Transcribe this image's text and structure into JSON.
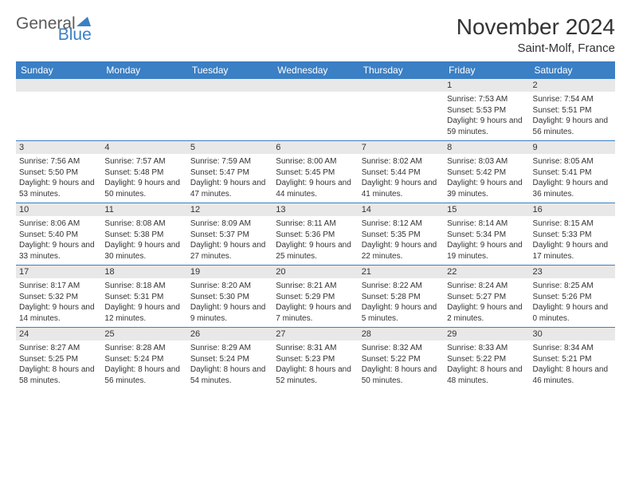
{
  "logo": {
    "textA": "General",
    "textB": "Blue"
  },
  "title": "November 2024",
  "location": "Saint-Molf, France",
  "colors": {
    "accent": "#3b7fc4",
    "header_bg": "#3b7fc4",
    "header_text": "#ffffff",
    "daynum_bg": "#e8e8e8",
    "text": "#333333",
    "logo_gray": "#5a5a5a",
    "background": "#ffffff"
  },
  "layout": {
    "font_family": "Arial",
    "month_title_fontsize": 28,
    "location_fontsize": 15,
    "day_header_fontsize": 12,
    "daynum_fontsize": 11,
    "info_fontsize": 10,
    "columns": 7,
    "rows": 5
  },
  "day_headers": [
    "Sunday",
    "Monday",
    "Tuesday",
    "Wednesday",
    "Thursday",
    "Friday",
    "Saturday"
  ],
  "weeks": [
    [
      null,
      null,
      null,
      null,
      null,
      {
        "n": "1",
        "sunrise": "7:53 AM",
        "sunset": "5:53 PM",
        "dl_h": "9",
        "dl_m": "59"
      },
      {
        "n": "2",
        "sunrise": "7:54 AM",
        "sunset": "5:51 PM",
        "dl_h": "9",
        "dl_m": "56"
      }
    ],
    [
      {
        "n": "3",
        "sunrise": "7:56 AM",
        "sunset": "5:50 PM",
        "dl_h": "9",
        "dl_m": "53"
      },
      {
        "n": "4",
        "sunrise": "7:57 AM",
        "sunset": "5:48 PM",
        "dl_h": "9",
        "dl_m": "50"
      },
      {
        "n": "5",
        "sunrise": "7:59 AM",
        "sunset": "5:47 PM",
        "dl_h": "9",
        "dl_m": "47"
      },
      {
        "n": "6",
        "sunrise": "8:00 AM",
        "sunset": "5:45 PM",
        "dl_h": "9",
        "dl_m": "44"
      },
      {
        "n": "7",
        "sunrise": "8:02 AM",
        "sunset": "5:44 PM",
        "dl_h": "9",
        "dl_m": "41"
      },
      {
        "n": "8",
        "sunrise": "8:03 AM",
        "sunset": "5:42 PM",
        "dl_h": "9",
        "dl_m": "39"
      },
      {
        "n": "9",
        "sunrise": "8:05 AM",
        "sunset": "5:41 PM",
        "dl_h": "9",
        "dl_m": "36"
      }
    ],
    [
      {
        "n": "10",
        "sunrise": "8:06 AM",
        "sunset": "5:40 PM",
        "dl_h": "9",
        "dl_m": "33"
      },
      {
        "n": "11",
        "sunrise": "8:08 AM",
        "sunset": "5:38 PM",
        "dl_h": "9",
        "dl_m": "30"
      },
      {
        "n": "12",
        "sunrise": "8:09 AM",
        "sunset": "5:37 PM",
        "dl_h": "9",
        "dl_m": "27"
      },
      {
        "n": "13",
        "sunrise": "8:11 AM",
        "sunset": "5:36 PM",
        "dl_h": "9",
        "dl_m": "25"
      },
      {
        "n": "14",
        "sunrise": "8:12 AM",
        "sunset": "5:35 PM",
        "dl_h": "9",
        "dl_m": "22"
      },
      {
        "n": "15",
        "sunrise": "8:14 AM",
        "sunset": "5:34 PM",
        "dl_h": "9",
        "dl_m": "19"
      },
      {
        "n": "16",
        "sunrise": "8:15 AM",
        "sunset": "5:33 PM",
        "dl_h": "9",
        "dl_m": "17"
      }
    ],
    [
      {
        "n": "17",
        "sunrise": "8:17 AM",
        "sunset": "5:32 PM",
        "dl_h": "9",
        "dl_m": "14"
      },
      {
        "n": "18",
        "sunrise": "8:18 AM",
        "sunset": "5:31 PM",
        "dl_h": "9",
        "dl_m": "12"
      },
      {
        "n": "19",
        "sunrise": "8:20 AM",
        "sunset": "5:30 PM",
        "dl_h": "9",
        "dl_m": "9"
      },
      {
        "n": "20",
        "sunrise": "8:21 AM",
        "sunset": "5:29 PM",
        "dl_h": "9",
        "dl_m": "7"
      },
      {
        "n": "21",
        "sunrise": "8:22 AM",
        "sunset": "5:28 PM",
        "dl_h": "9",
        "dl_m": "5"
      },
      {
        "n": "22",
        "sunrise": "8:24 AM",
        "sunset": "5:27 PM",
        "dl_h": "9",
        "dl_m": "2"
      },
      {
        "n": "23",
        "sunrise": "8:25 AM",
        "sunset": "5:26 PM",
        "dl_h": "9",
        "dl_m": "0"
      }
    ],
    [
      {
        "n": "24",
        "sunrise": "8:27 AM",
        "sunset": "5:25 PM",
        "dl_h": "8",
        "dl_m": "58"
      },
      {
        "n": "25",
        "sunrise": "8:28 AM",
        "sunset": "5:24 PM",
        "dl_h": "8",
        "dl_m": "56"
      },
      {
        "n": "26",
        "sunrise": "8:29 AM",
        "sunset": "5:24 PM",
        "dl_h": "8",
        "dl_m": "54"
      },
      {
        "n": "27",
        "sunrise": "8:31 AM",
        "sunset": "5:23 PM",
        "dl_h": "8",
        "dl_m": "52"
      },
      {
        "n": "28",
        "sunrise": "8:32 AM",
        "sunset": "5:22 PM",
        "dl_h": "8",
        "dl_m": "50"
      },
      {
        "n": "29",
        "sunrise": "8:33 AM",
        "sunset": "5:22 PM",
        "dl_h": "8",
        "dl_m": "48"
      },
      {
        "n": "30",
        "sunrise": "8:34 AM",
        "sunset": "5:21 PM",
        "dl_h": "8",
        "dl_m": "46"
      }
    ]
  ]
}
